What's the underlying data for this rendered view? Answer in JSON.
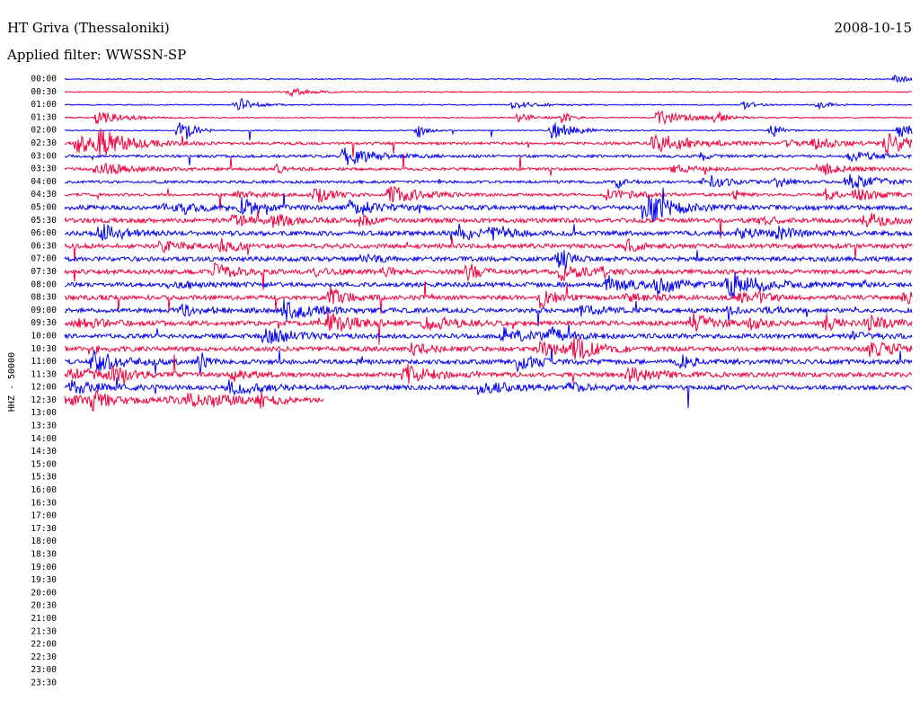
{
  "header": {
    "station": "HT Griva (Thessaloniki)",
    "date": "2008-10-15",
    "filter": "Applied filter: WWSSN-SP"
  },
  "channel_label": "HHZ - 50000",
  "time_labels": [
    "00:00",
    "00:30",
    "01:00",
    "01:30",
    "02:00",
    "02:30",
    "03:00",
    "03:30",
    "04:00",
    "04:30",
    "05:00",
    "05:30",
    "06:00",
    "06:30",
    "07:00",
    "07:30",
    "08:00",
    "08:30",
    "09:00",
    "09:30",
    "10:00",
    "10:30",
    "11:00",
    "11:30",
    "12:00",
    "12:30",
    "13:00",
    "13:30",
    "14:00",
    "14:30",
    "15:00",
    "15:30",
    "16:00",
    "16:30",
    "17:00",
    "17:30",
    "18:00",
    "18:30",
    "19:00",
    "19:30",
    "20:00",
    "20:30",
    "21:00",
    "21:30",
    "22:00",
    "22:30",
    "23:00",
    "23:30"
  ]
}
